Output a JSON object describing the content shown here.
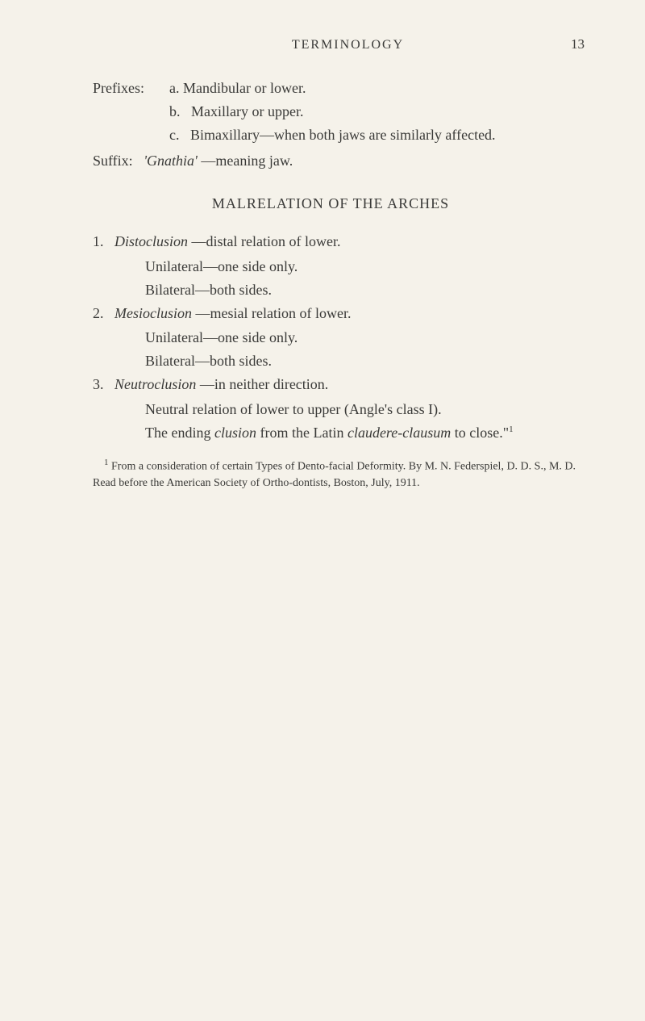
{
  "header": {
    "running_head": "TERMINOLOGY",
    "page_number": "13"
  },
  "prefixes": {
    "label": "Prefixes:",
    "items": [
      {
        "letter": "a.",
        "text": "Mandibular or lower."
      },
      {
        "letter": "b.",
        "text": "Maxillary or upper."
      },
      {
        "letter": "c.",
        "text": "Bimaxillary—when both jaws are similarly affected."
      }
    ]
  },
  "suffix": {
    "label": "Suffix:",
    "term": "'Gnathia'",
    "definition": "—meaning jaw."
  },
  "section_heading": "MALRELATION OF THE ARCHES",
  "items": [
    {
      "number": "1.",
      "term": "Distoclusion",
      "definition": "—distal relation of lower.",
      "subs": [
        "Unilateral—one side only.",
        "Bilateral—both sides."
      ]
    },
    {
      "number": "2.",
      "term": "Mesioclusion",
      "definition": "—mesial relation of lower.",
      "subs": [
        "Unilateral—one side only.",
        "Bilateral—both sides."
      ]
    },
    {
      "number": "3.",
      "term": "Neutroclusion",
      "definition": "—in neither direction.",
      "continuation": [
        "Neutral relation of lower to upper (Angle's class I).",
        "The ending ",
        "clusion",
        " from the Latin ",
        "claudere-clausum",
        " to close.\"",
        "1"
      ]
    }
  ],
  "footnote": {
    "marker": "1",
    "text_parts": [
      " From a consideration of certain Types of Dento-facial Deformity. By M. N. Federspiel, D. D. S., M. D. Read before the American Society of Ortho-dontists, Boston, July, 1911."
    ]
  }
}
